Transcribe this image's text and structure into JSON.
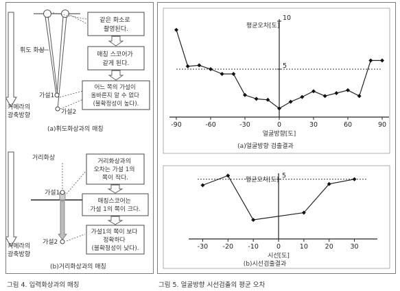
{
  "left_figure": {
    "panel_a": {
      "box1": [
        "같은 화소로",
        "촬영된다."
      ],
      "box2": [
        "매칭 스코어가",
        "같게 된다."
      ],
      "box3": [
        "어느 쪽의 가설이",
        "올바른지 알 수 없다",
        "(불확정성이 높다)."
      ],
      "label_far_image": "휘도 화상",
      "label_hyp1": "가설1",
      "label_hyp2": "가설2",
      "label_camera_axis": [
        "카메라의",
        "광축방향"
      ],
      "caption": "(a)휘도화상과의 매칭"
    },
    "panel_b": {
      "label_range_image": "거리화상",
      "box1": [
        "거리화상과의",
        "오차는 가설 1의",
        "쪽이 작다."
      ],
      "box2": [
        "매칭스코어는",
        "가설 1의 쪽이 크다."
      ],
      "box3": [
        "가설1의 쪽이 보다",
        "정확하다",
        "(불확정성이 낮다)."
      ],
      "label_hyp1": "가설1",
      "label_hyp2": "가설2",
      "label_camera_axis": [
        "카메라의",
        "광축방향"
      ],
      "caption": "(b)거리화상과의 매칭"
    },
    "figure_caption": "그림 4. 입력화상과의 매칭"
  },
  "right_figure": {
    "figure_caption": "그림 5. 얼굴방향 시선검출의 평균 오차"
  },
  "chart_data": [
    {
      "type": "line",
      "title": "",
      "ylabel": "평균오차[도]",
      "xlabel": "얼굴방향[도]",
      "caption": "(a)얼굴방향 검출결과",
      "xlim": [
        -90,
        90
      ],
      "ylim": [
        0,
        10
      ],
      "xticks": [
        -90,
        -60,
        -30,
        0,
        30,
        60,
        90
      ],
      "yticks": [
        5,
        10
      ],
      "reference_line": 5,
      "x": [
        -90,
        -80,
        -70,
        -60,
        -50,
        -40,
        -30,
        -20,
        -10,
        0,
        10,
        20,
        30,
        40,
        50,
        60,
        70,
        80,
        90
      ],
      "y": [
        9.1,
        5.3,
        5.4,
        5.0,
        4.5,
        4.5,
        2.3,
        1.9,
        1.8,
        0.9,
        1.6,
        2.1,
        2.7,
        2.2,
        2.5,
        2.8,
        2.2,
        5.9,
        5.9
      ]
    },
    {
      "type": "line",
      "title": "",
      "ylabel": "평균오차[도]",
      "xlabel": "시선[도]",
      "caption": "(b)시선검출결과",
      "xlim": [
        -35,
        35
      ],
      "ylim": [
        0,
        5.5
      ],
      "xticks": [
        -30,
        -20,
        -10,
        0,
        10,
        20,
        30
      ],
      "yticks": [
        5
      ],
      "reference_line": 5,
      "x": [
        -30,
        -20,
        -10,
        10,
        20,
        30
      ],
      "y": [
        4.5,
        5.3,
        1.6,
        2.2,
        4.6,
        5.0
      ]
    }
  ]
}
